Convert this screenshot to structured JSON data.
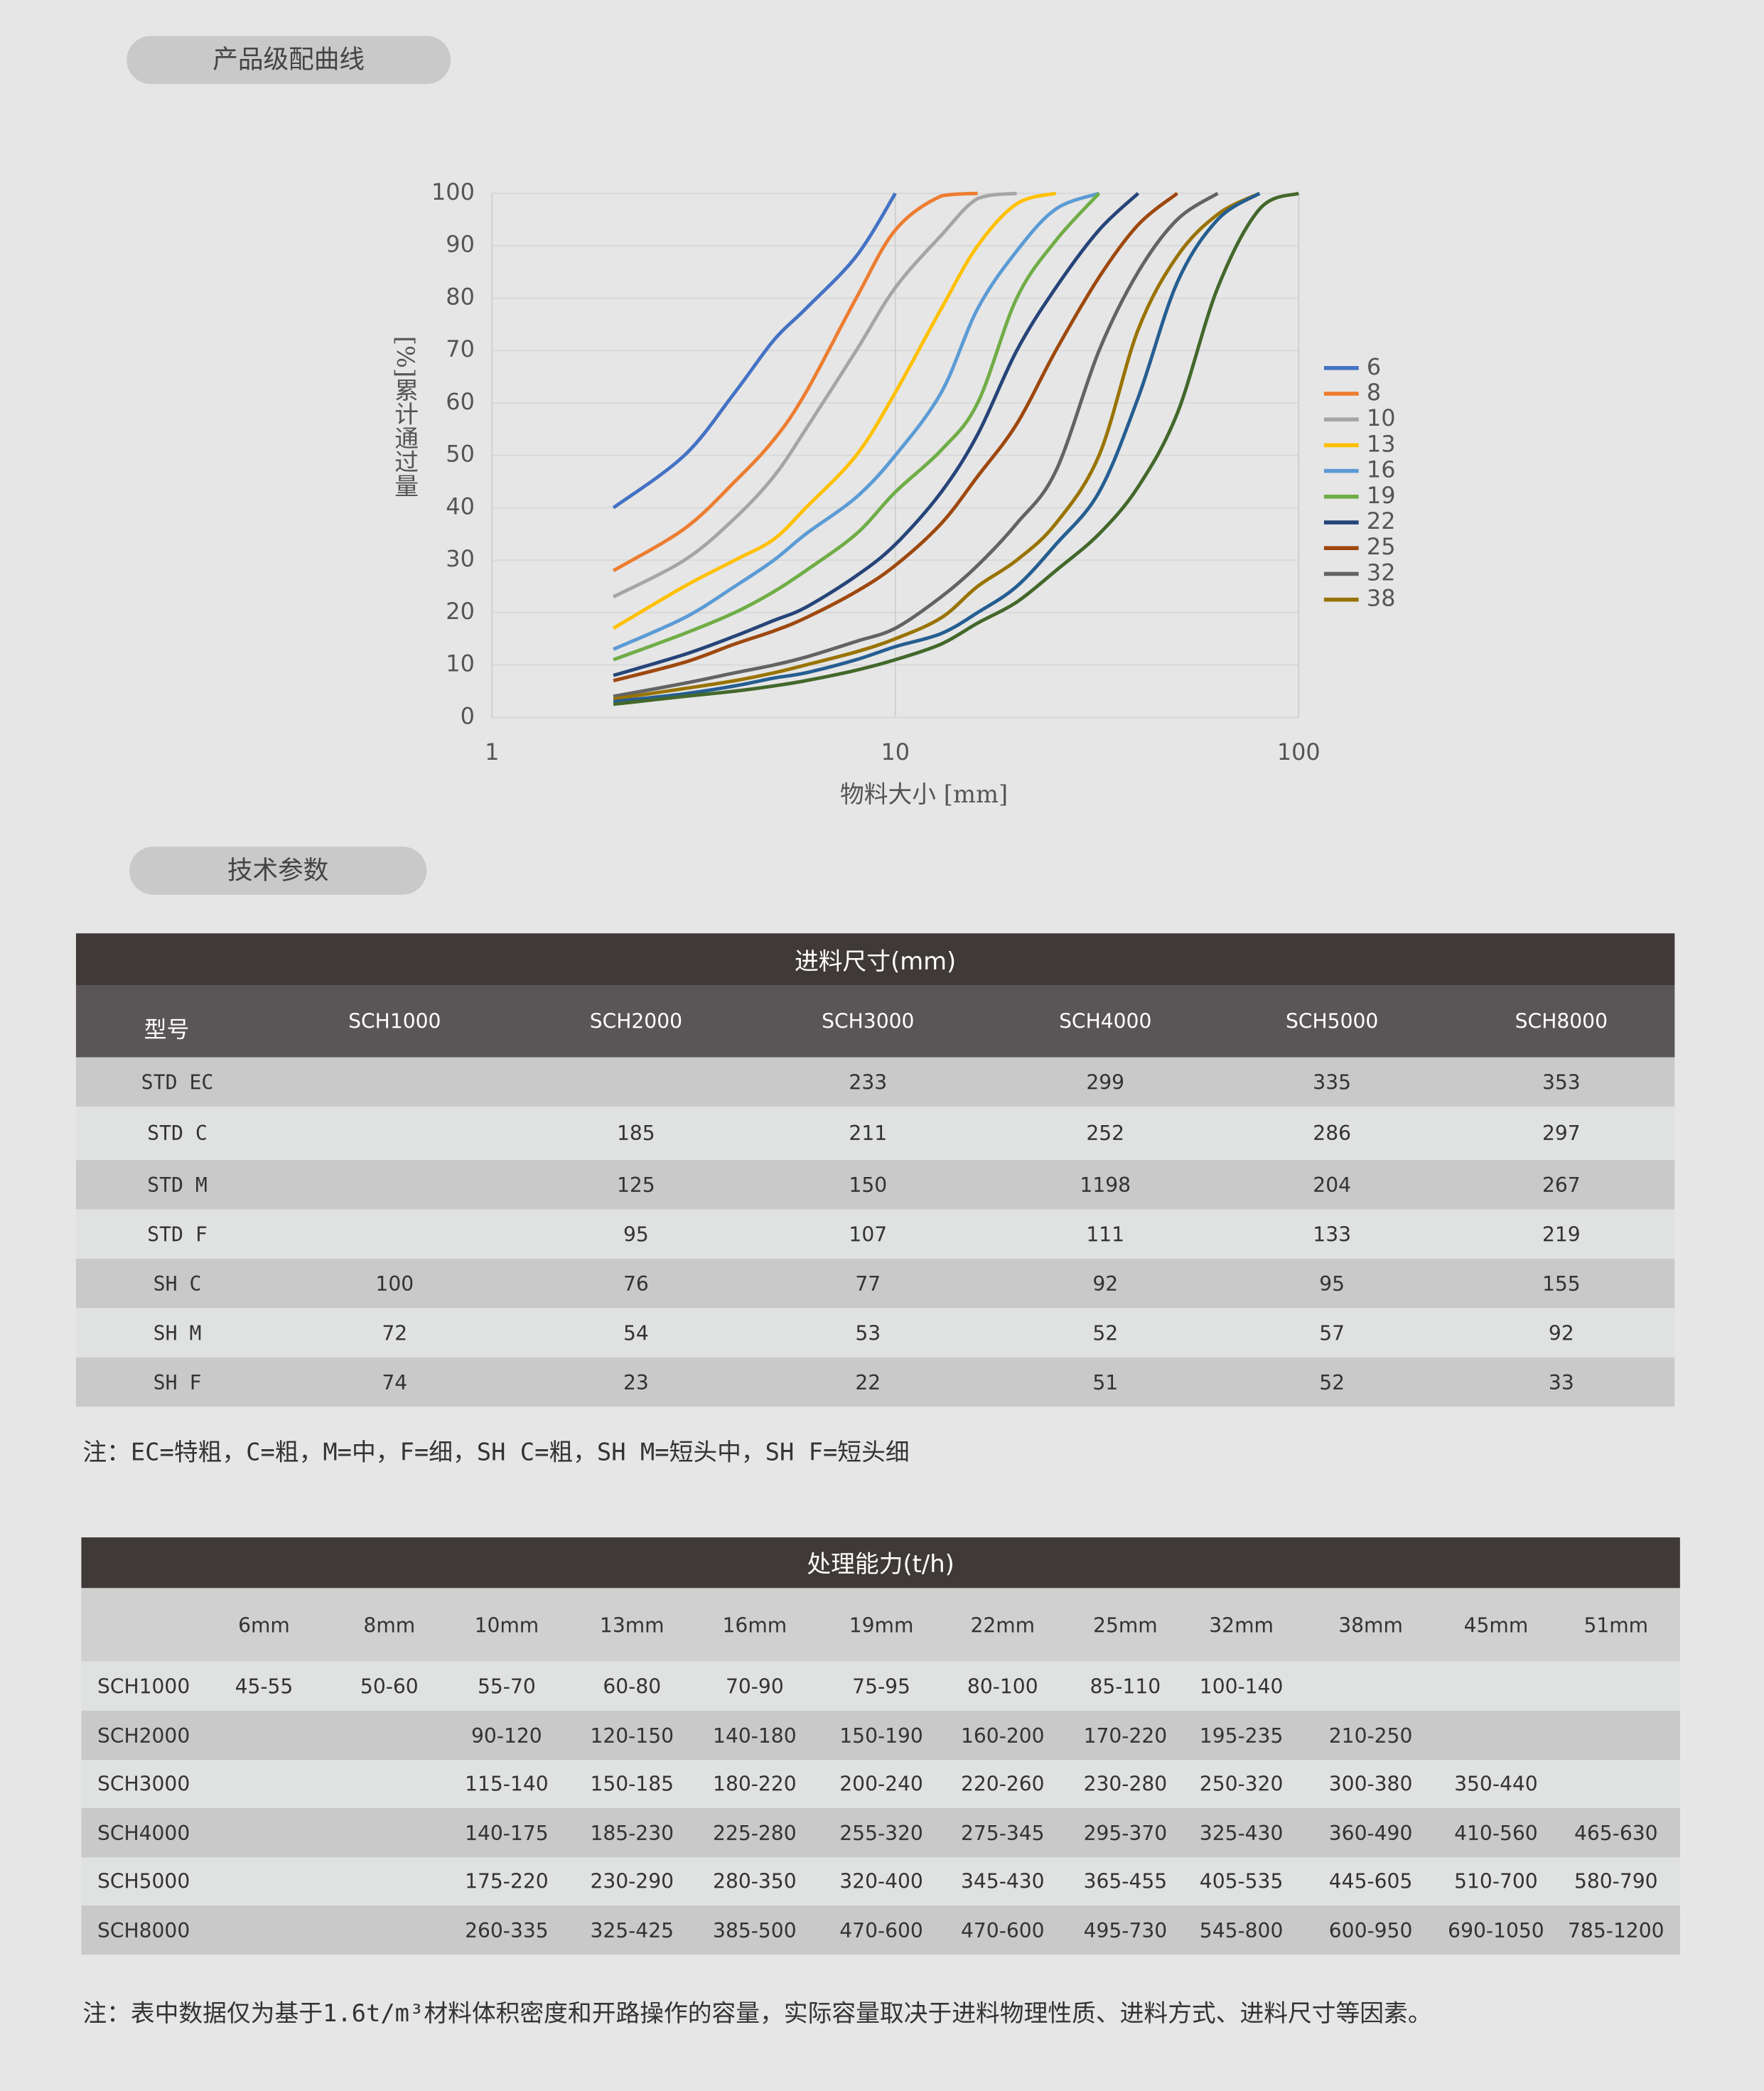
{
  "sections": {
    "curve_title": "产品级配曲线",
    "params_title": "技术参数"
  },
  "chart_data": {
    "type": "line",
    "x_label": "物料大小 [mm]",
    "y_label": "[%]累计通过量",
    "log_x": true,
    "xlim": [
      1,
      100
    ],
    "xticks": [
      1,
      10,
      100
    ],
    "ylim": [
      0,
      100
    ],
    "yticks": [
      0,
      10,
      20,
      30,
      40,
      50,
      60,
      70,
      80,
      90,
      100
    ],
    "grid": true,
    "legend": "right",
    "series": [
      {
        "name": "6",
        "color": "#4472c4",
        "x": [
          2,
          3,
          4,
          5,
          6,
          8,
          10
        ],
        "values": [
          40,
          50,
          62,
          72,
          78,
          88,
          100
        ]
      },
      {
        "name": "8",
        "color": "#ed7d31",
        "x": [
          2,
          3,
          4,
          5,
          6,
          8,
          10,
          13,
          16
        ],
        "values": [
          28,
          36,
          45,
          53,
          62,
          80,
          93,
          99.5,
          100
        ]
      },
      {
        "name": "10",
        "color": "#a5a5a5",
        "x": [
          2,
          3,
          4,
          5,
          6,
          8,
          10,
          13,
          16,
          20
        ],
        "values": [
          23,
          30,
          38,
          46,
          55,
          70,
          82,
          92,
          99,
          100
        ]
      },
      {
        "name": "13",
        "color": "#ffc000",
        "x": [
          2,
          3,
          4,
          5,
          6,
          8,
          10,
          13,
          16,
          20,
          25
        ],
        "values": [
          17,
          25,
          30,
          34,
          40,
          50,
          62,
          78,
          90,
          98,
          100
        ]
      },
      {
        "name": "16",
        "color": "#5b9bd5",
        "x": [
          2,
          3,
          4,
          5,
          6,
          8,
          10,
          13,
          16,
          20,
          25,
          32
        ],
        "values": [
          13,
          19,
          25,
          30,
          35,
          42,
          50,
          62,
          78,
          89,
          97,
          100
        ]
      },
      {
        "name": "19",
        "color": "#70ad47",
        "x": [
          2,
          3,
          4,
          5,
          6,
          8,
          10,
          13,
          16,
          20,
          25,
          32
        ],
        "values": [
          11,
          16,
          20,
          24,
          28,
          35,
          43,
          51,
          60,
          80,
          91,
          100
        ]
      },
      {
        "name": "22",
        "color": "#264478",
        "x": [
          2,
          3,
          4,
          5,
          6,
          8,
          10,
          13,
          16,
          20,
          25,
          32,
          40
        ],
        "values": [
          8,
          12,
          15.5,
          18.5,
          21,
          27,
          33,
          43,
          54,
          70,
          82,
          93,
          100
        ]
      },
      {
        "name": "25",
        "color": "#9e480e",
        "x": [
          2,
          3,
          4,
          5,
          6,
          8,
          10,
          13,
          16,
          20,
          25,
          32,
          40,
          50
        ],
        "values": [
          7,
          10.5,
          14,
          16.5,
          19,
          24,
          29,
          37,
          46,
          56,
          70,
          84,
          94,
          100
        ]
      },
      {
        "name": "32",
        "color": "#636363",
        "x": [
          2,
          3,
          4,
          5,
          6,
          8,
          10,
          13,
          16,
          20,
          25,
          32,
          40,
          50,
          63
        ],
        "values": [
          4,
          6.5,
          8.5,
          10,
          11.5,
          14.5,
          17,
          23,
          29,
          37,
          47,
          70,
          85,
          95,
          100
        ]
      },
      {
        "name": "38",
        "color": "#997300",
        "x": [
          2,
          3,
          4,
          5,
          6,
          8,
          10,
          13,
          16,
          20,
          25,
          32,
          40,
          50,
          63,
          80
        ],
        "values": [
          3.5,
          5.5,
          7,
          8.5,
          10,
          12.5,
          15,
          19,
          25,
          30,
          37,
          50,
          74,
          88,
          96,
          100
        ]
      },
      {
        "color": "#255e91",
        "x": [
          2,
          3,
          4,
          5,
          6,
          8,
          10,
          13,
          16,
          20,
          25,
          32,
          40,
          50,
          63,
          80
        ],
        "values": [
          3,
          4.5,
          6,
          7.5,
          8.5,
          11,
          13.5,
          16,
          20,
          25,
          33,
          43,
          61,
          83,
          95,
          100
        ]
      },
      {
        "color": "#43682b",
        "x": [
          2,
          3,
          4,
          5,
          6,
          8,
          10,
          13,
          16,
          20,
          25,
          32,
          40,
          50,
          63,
          80,
          100
        ],
        "values": [
          2.5,
          4,
          5,
          6,
          7,
          9,
          11,
          14,
          18,
          22,
          28,
          35,
          44,
          58,
          82,
          97,
          100
        ]
      }
    ]
  },
  "table1": {
    "title": "进料尺寸(mm)",
    "header": [
      "型号",
      "SCH1000",
      "SCH2000",
      "SCH3000",
      "SCH4000",
      "SCH5000",
      "SCH8000"
    ],
    "rows": [
      [
        "STD EC",
        null,
        null,
        "233",
        "299",
        "335",
        "353"
      ],
      [
        "STD C",
        null,
        "185",
        "211",
        "252",
        "286",
        "297"
      ],
      [
        "STD M",
        null,
        "125",
        "150",
        "1198",
        "204",
        "267"
      ],
      [
        "STD F",
        null,
        "95",
        "107",
        "111",
        "133",
        "219"
      ],
      [
        "SH C",
        "100",
        "76",
        "77",
        "92",
        "95",
        "155"
      ],
      [
        "SH M",
        "72",
        "54",
        "53",
        "52",
        "57",
        "92"
      ],
      [
        "SH F",
        "74",
        "23",
        "22",
        "51",
        "52",
        "33"
      ]
    ],
    "note": "注：EC=特粗，C=粗，M=中，F=细，SH C=粗，SH M=短头中，SH F=短头细"
  },
  "table2": {
    "title": "处理能力(t/h)",
    "header": [
      null,
      "6mm",
      "8mm",
      "10mm",
      "13mm",
      "16mm",
      "19mm",
      "22mm",
      "25mm",
      "32mm",
      "38mm",
      "45mm",
      "51mm"
    ],
    "rows": [
      [
        "SCH1000",
        "45-55",
        "50-60",
        "55-70",
        "60-80",
        "70-90",
        "75-95",
        "80-100",
        "85-110",
        "100-140",
        null,
        null,
        null
      ],
      [
        "SCH2000",
        null,
        null,
        "90-120",
        "120-150",
        "140-180",
        "150-190",
        "160-200",
        "170-220",
        "195-235",
        "210-250",
        null,
        null
      ],
      [
        "SCH3000",
        null,
        null,
        "115-140",
        "150-185",
        "180-220",
        "200-240",
        "220-260",
        "230-280",
        "250-320",
        "300-380",
        "350-440",
        null
      ],
      [
        "SCH4000",
        null,
        null,
        "140-175",
        "185-230",
        "225-280",
        "255-320",
        "275-345",
        "295-370",
        "325-430",
        "360-490",
        "410-560",
        "465-630"
      ],
      [
        "SCH5000",
        null,
        null,
        "175-220",
        "230-290",
        "280-350",
        "320-400",
        "345-430",
        "365-455",
        "405-535",
        "445-605",
        "510-700",
        "580-790"
      ],
      [
        "SCH8000",
        null,
        null,
        "260-335",
        "325-425",
        "385-500",
        "470-600",
        "470-600",
        "495-730",
        "545-800",
        "600-950",
        "690-1050",
        "785-1200"
      ]
    ],
    "note": "注：表中数据仅为基于1.6t/m³材料体积密度和开路操作的容量，实际容量取决于进料物理性质、进料方式、进料尺寸等因素。"
  }
}
